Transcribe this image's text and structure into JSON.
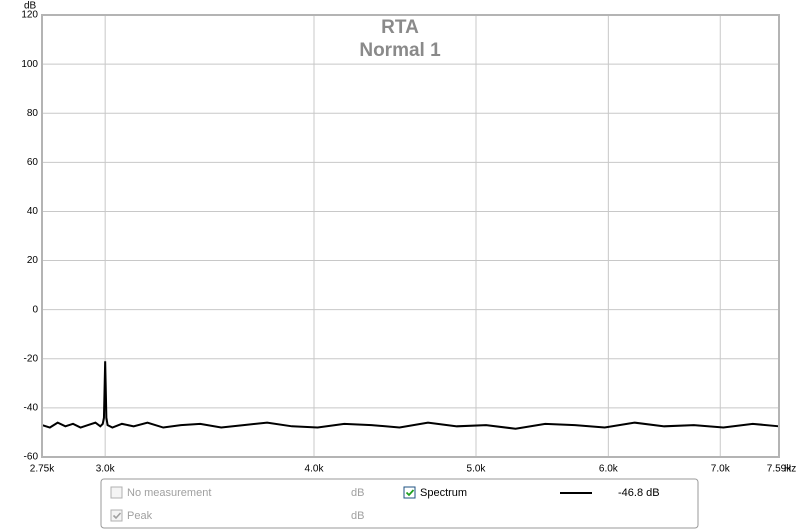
{
  "chart_data": {
    "type": "line",
    "title": "RTA",
    "subtitle": "Normal 1",
    "y_label": "dB",
    "x_label": "Hz",
    "log_x": true,
    "grid": true,
    "xlim": [
      2750,
      7590
    ],
    "ylim": [
      -60,
      120
    ],
    "xticks": [
      {
        "value": 2750,
        "label": "2.75k"
      },
      {
        "value": 3000,
        "label": "3.0k"
      },
      {
        "value": 4000,
        "label": "4.0k"
      },
      {
        "value": 5000,
        "label": "5.0k"
      },
      {
        "value": 6000,
        "label": "6.0k"
      },
      {
        "value": 7000,
        "label": "7.0k"
      },
      {
        "value": 7590,
        "label": "7.59k"
      }
    ],
    "yticks": [
      -60,
      -40,
      -20,
      0,
      20,
      40,
      60,
      80,
      100,
      120
    ],
    "series": [
      {
        "name": "Spectrum",
        "color": "#000000",
        "x": [
          2750,
          2780,
          2810,
          2840,
          2870,
          2900,
          2930,
          2960,
          2980,
          2990,
          2995,
          3000,
          3005,
          3010,
          3030,
          3070,
          3120,
          3180,
          3250,
          3330,
          3420,
          3520,
          3630,
          3750,
          3880,
          4020,
          4170,
          4330,
          4500,
          4680,
          4870,
          5070,
          5280,
          5500,
          5730,
          5970,
          6220,
          6480,
          6750,
          7030,
          7320,
          7590
        ],
        "values": [
          -47,
          -48,
          -46,
          -47.5,
          -46.5,
          -48,
          -47,
          -46,
          -47.5,
          -46.5,
          -44,
          -21,
          -44,
          -47,
          -48,
          -46.5,
          -47.5,
          -46,
          -48,
          -47,
          -46.5,
          -48,
          -47,
          -46,
          -47.5,
          -48,
          -46.5,
          -47,
          -48,
          -46,
          -47.5,
          -47,
          -48.5,
          -46.5,
          -47,
          -48,
          -46,
          -47.5,
          -47,
          -48,
          -46.5,
          -47.5
        ]
      }
    ]
  },
  "panel": {
    "rows": [
      {
        "label": "No measurement",
        "unit": "dB",
        "checked": false
      },
      {
        "label": "Peak",
        "unit": "dB",
        "checked": true
      }
    ],
    "spectrum_checked": true,
    "reading": "-46.8 dB"
  }
}
